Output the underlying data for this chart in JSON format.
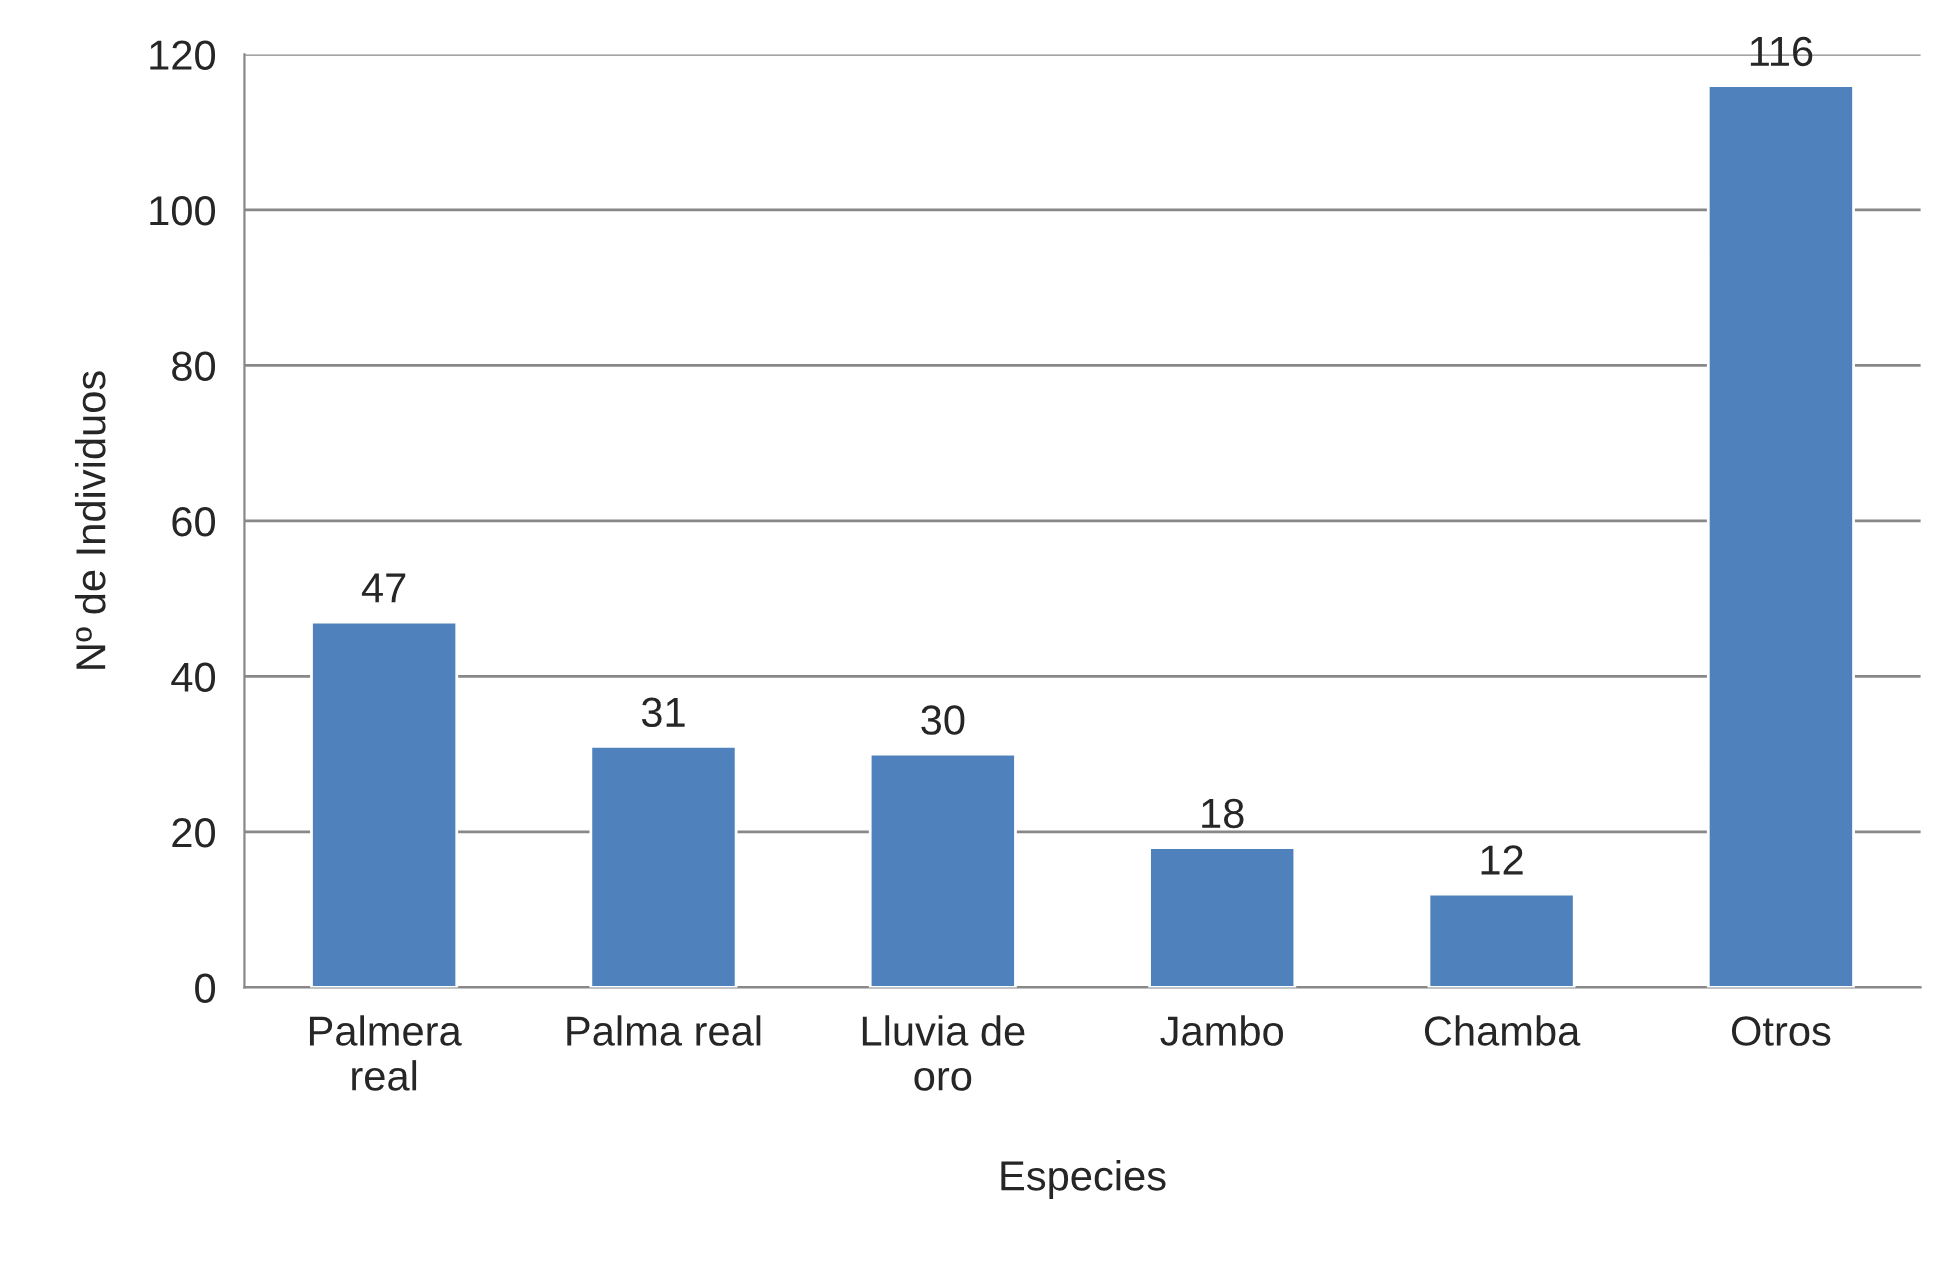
{
  "chart_data": {
    "type": "bar",
    "xlabel": "Especies",
    "ylabel": "Nº de Individuos",
    "categories": [
      "Palmera real",
      "Palma real",
      "Lluvia de oro",
      "Jambo",
      "Chamba",
      "Otros"
    ],
    "values": [
      47,
      31,
      30,
      18,
      12,
      116
    ],
    "color": "#4f81bd",
    "ylim": [
      0,
      120
    ],
    "yticks": [
      0,
      20,
      40,
      60,
      80,
      100,
      120
    ],
    "grid": "y",
    "data_labels": true
  }
}
